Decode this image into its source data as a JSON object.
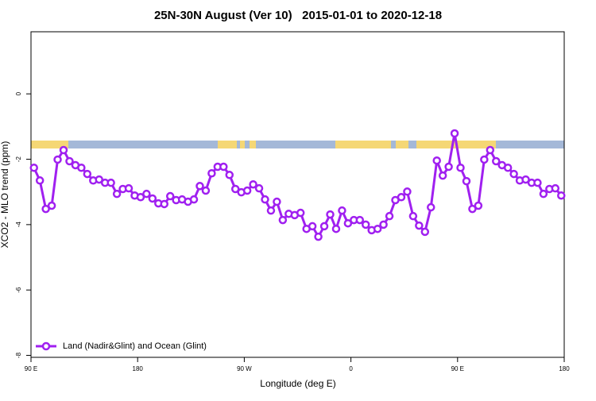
{
  "chart_data": {
    "type": "line",
    "title": "25N-30N August (Ver 10)   2015-01-01 to 2020-12-18",
    "xlabel": "Longitude (deg E)",
    "ylabel": "XCO2 - MLO trend (ppm)",
    "x": [
      92.5,
      97.5,
      102.5,
      107.5,
      112.5,
      117.5,
      122.5,
      127.5,
      132.5,
      137.5,
      142.5,
      147.5,
      152.5,
      157.5,
      162.5,
      167.5,
      172.5,
      177.5,
      182.5,
      187.5,
      192.5,
      197.5,
      202.5,
      207.5,
      212.5,
      217.5,
      222.5,
      227.5,
      232.5,
      237.5,
      242.5,
      247.5,
      252.5,
      257.5,
      262.5,
      267.5,
      272.5,
      277.5,
      282.5,
      287.5,
      292.5,
      297.5,
      302.5,
      307.5,
      312.5,
      317.5,
      322.5,
      327.5,
      332.5,
      337.5,
      342.5,
      347.5,
      352.5,
      357.5,
      362.5,
      367.5,
      372.5,
      377.5,
      382.5,
      387.5,
      392.5,
      397.5,
      402.5,
      407.5,
      412.5,
      417.5,
      422.5,
      427.5,
      432.5,
      437.5,
      442.5,
      447.5,
      452.5,
      457.5,
      462.5,
      467.5,
      472.5,
      477.5,
      482.5,
      487.5,
      492.5,
      497.5,
      502.5,
      507.5,
      512.5,
      517.5,
      522.5,
      527.5,
      532.5,
      537.5
    ],
    "series": [
      {
        "name": "Land (Nadir&Glint) and Ocean (Glint)",
        "color": "#a020f0",
        "values": [
          -2.26,
          -2.65,
          -3.52,
          -3.42,
          -2.01,
          -1.72,
          -2.06,
          -2.18,
          -2.26,
          -2.45,
          -2.65,
          -2.62,
          -2.72,
          -2.72,
          -3.06,
          -2.91,
          -2.89,
          -3.11,
          -3.16,
          -3.06,
          -3.2,
          -3.35,
          -3.37,
          -3.13,
          -3.25,
          -3.23,
          -3.3,
          -3.23,
          -2.82,
          -2.96,
          -2.43,
          -2.23,
          -2.23,
          -2.48,
          -2.91,
          -3.01,
          -2.96,
          -2.77,
          -2.89,
          -3.23,
          -3.57,
          -3.3,
          -3.86,
          -3.67,
          -3.71,
          -3.64,
          -4.13,
          -4.05,
          -4.37,
          -4.05,
          -3.69,
          -4.13,
          -3.57,
          -3.96,
          -3.86,
          -3.86,
          -4.0,
          -4.17,
          -4.13,
          -4.0,
          -3.74,
          -3.25,
          -3.16,
          -2.99,
          -3.74,
          -4.03,
          -4.22,
          -3.47,
          -2.04,
          -2.5,
          -2.23,
          -1.21,
          -2.26,
          -2.67,
          -3.52,
          -3.42,
          -2.01,
          -1.72,
          -2.06,
          -2.18,
          -2.26,
          -2.45,
          -2.65,
          -2.62,
          -2.72,
          -2.72,
          -3.06,
          -2.91,
          -2.89,
          -3.11
        ]
      }
    ],
    "xlim": [
      90,
      540
    ],
    "xticks": [
      {
        "value": 90,
        "label": "90 E"
      },
      {
        "value": 180,
        "label": "180"
      },
      {
        "value": 270,
        "label": "90 W"
      },
      {
        "value": 360,
        "label": "0"
      },
      {
        "value": 450,
        "label": "90 E"
      },
      {
        "value": 540,
        "label": "180"
      }
    ],
    "ylim": [
      -8.06,
      1.9
    ],
    "yticks": [
      -8,
      -6,
      -4,
      -2,
      0
    ],
    "legend": "bottomleft"
  }
}
